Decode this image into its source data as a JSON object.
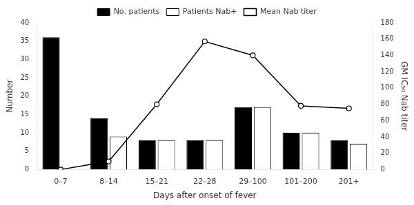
{
  "chart_data": {
    "type": "bar",
    "xlabel": "Days after onset of fever",
    "ylabel": "Number",
    "y2label": "GM IC₉₀ Nab titer",
    "categories": [
      "0–7",
      "8–14",
      "15–21",
      "22–28",
      "29–100",
      "101–200",
      "201+"
    ],
    "series": [
      {
        "name": "No. patients",
        "color": "#000000",
        "values": [
          36,
          14,
          8,
          8,
          17,
          10,
          8
        ]
      },
      {
        "name": "Patients Nab+",
        "color": "#ffffff",
        "values": [
          0,
          9,
          8,
          8,
          17,
          10,
          7
        ]
      },
      {
        "name": "Mean Nab titer",
        "type": "line",
        "axis": "y2",
        "color": "#000000",
        "marker": "circle",
        "values": [
          0,
          10,
          80,
          157,
          140,
          78,
          75
        ]
      }
    ],
    "ylim": [
      0,
      40
    ],
    "yticks": [
      0,
      5,
      10,
      15,
      20,
      25,
      30,
      35,
      40
    ],
    "y2lim": [
      0,
      180
    ],
    "y2ticks": [
      0,
      20,
      40,
      60,
      80,
      100,
      120,
      140,
      160,
      180
    ],
    "legend": "top",
    "grid": false
  }
}
